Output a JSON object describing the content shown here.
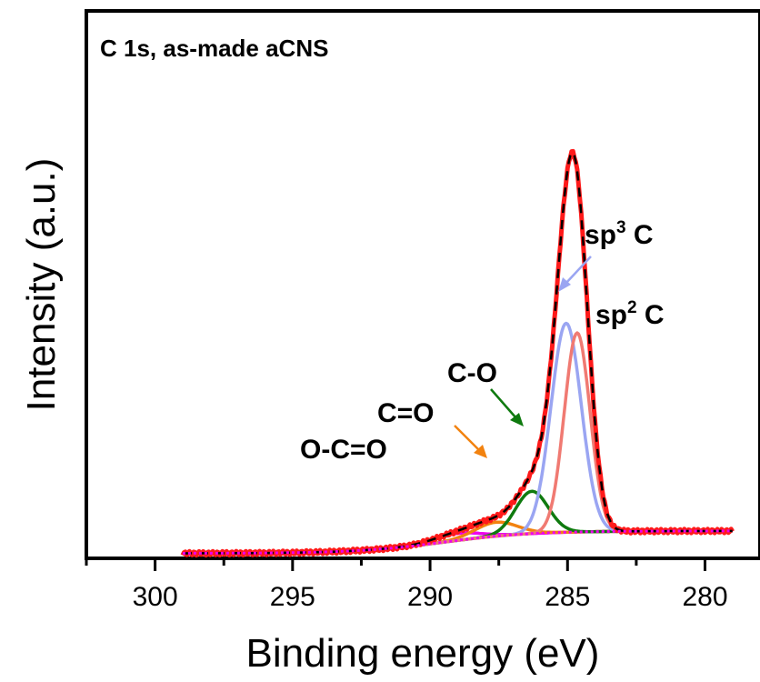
{
  "chart_data": {
    "type": "line",
    "title": "C 1s, as-made aCNS",
    "xlabel": "Binding energy (eV)",
    "ylabel": "Intensity (a.u.)",
    "xlim": [
      302.5,
      278
    ],
    "ylim": [
      0,
      1.1
    ],
    "x_ticks": [
      300,
      295,
      290,
      285,
      280
    ],
    "x_tick_labels": [
      "300",
      "295",
      "290",
      "285",
      "280"
    ],
    "x_reversed": true,
    "y_ticks_shown": false,
    "grid": false,
    "legend": "none",
    "x_range_data": [
      299,
      279
    ],
    "background": {
      "start": 0.055,
      "end": 0.01,
      "center": 289.5,
      "width": 1.6
    },
    "peaks": [
      {
        "label_main": "sp",
        "label_sup": "3",
        "label_tail": " C",
        "color": "#9aa5f2",
        "center": 285.05,
        "amplitude": 0.42,
        "fwhm": 1.3
      },
      {
        "label_main": "sp",
        "label_sup": "2",
        "label_tail": " C",
        "color": "#f07a72",
        "center": 284.65,
        "amplitude": 0.4,
        "fwhm": 1.1
      },
      {
        "label_main": "C-O",
        "label_sup": "",
        "label_tail": "",
        "color": "#0f7a0f",
        "center": 286.3,
        "amplitude": 0.085,
        "fwhm": 1.4
      },
      {
        "label_main": "C=O",
        "label_sup": "",
        "label_tail": "",
        "color": "#f2820f",
        "center": 287.6,
        "amplitude": 0.028,
        "fwhm": 1.8
      },
      {
        "label_main": "O-C=O",
        "label_sup": "",
        "label_tail": "",
        "color": "#ee00ee",
        "center": 289.0,
        "amplitude": 0.014,
        "fwhm": 2.0
      }
    ],
    "series": [
      {
        "role": "envelope",
        "color": "#000000"
      },
      {
        "role": "raw",
        "color": "#ff1a1a"
      },
      {
        "role": "baseline",
        "color": "#ee00ee"
      }
    ]
  }
}
